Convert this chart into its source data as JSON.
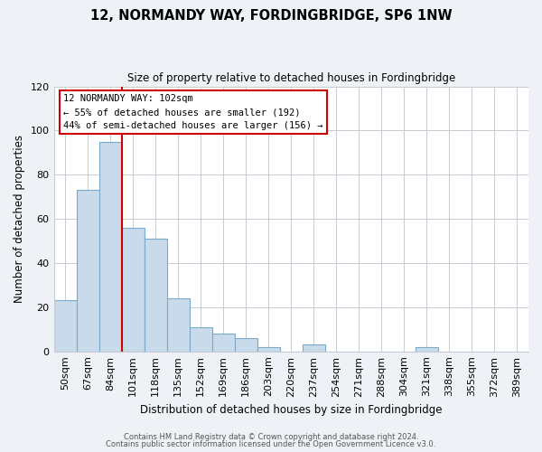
{
  "title": "12, NORMANDY WAY, FORDINGBRIDGE, SP6 1NW",
  "subtitle": "Size of property relative to detached houses in Fordingbridge",
  "xlabel": "Distribution of detached houses by size in Fordingbridge",
  "ylabel": "Number of detached properties",
  "bin_labels": [
    "50sqm",
    "67sqm",
    "84sqm",
    "101sqm",
    "118sqm",
    "135sqm",
    "152sqm",
    "169sqm",
    "186sqm",
    "203sqm",
    "220sqm",
    "237sqm",
    "254sqm",
    "271sqm",
    "288sqm",
    "304sqm",
    "321sqm",
    "338sqm",
    "355sqm",
    "372sqm",
    "389sqm"
  ],
  "bar_heights": [
    23,
    73,
    95,
    56,
    51,
    24,
    11,
    8,
    6,
    2,
    0,
    3,
    0,
    0,
    0,
    0,
    2,
    0,
    0,
    0,
    0
  ],
  "bar_color": "#c9daea",
  "bar_edge_color": "#7aaac8",
  "reference_line_index": 3,
  "reference_line_color": "#cc0000",
  "ylim": [
    0,
    120
  ],
  "yticks": [
    0,
    20,
    40,
    60,
    80,
    100,
    120
  ],
  "annotation_title": "12 NORMANDY WAY: 102sqm",
  "annotation_line1": "← 55% of detached houses are smaller (192)",
  "annotation_line2": "44% of semi-detached houses are larger (156) →",
  "annotation_box_color": "#ffffff",
  "annotation_box_edge_color": "#cc0000",
  "footer_line1": "Contains HM Land Registry data © Crown copyright and database right 2024.",
  "footer_line2": "Contains public sector information licensed under the Open Government Licence v3.0.",
  "background_color": "#eef2f7",
  "plot_background_color": "#ffffff",
  "grid_color": "#c8cdd5"
}
